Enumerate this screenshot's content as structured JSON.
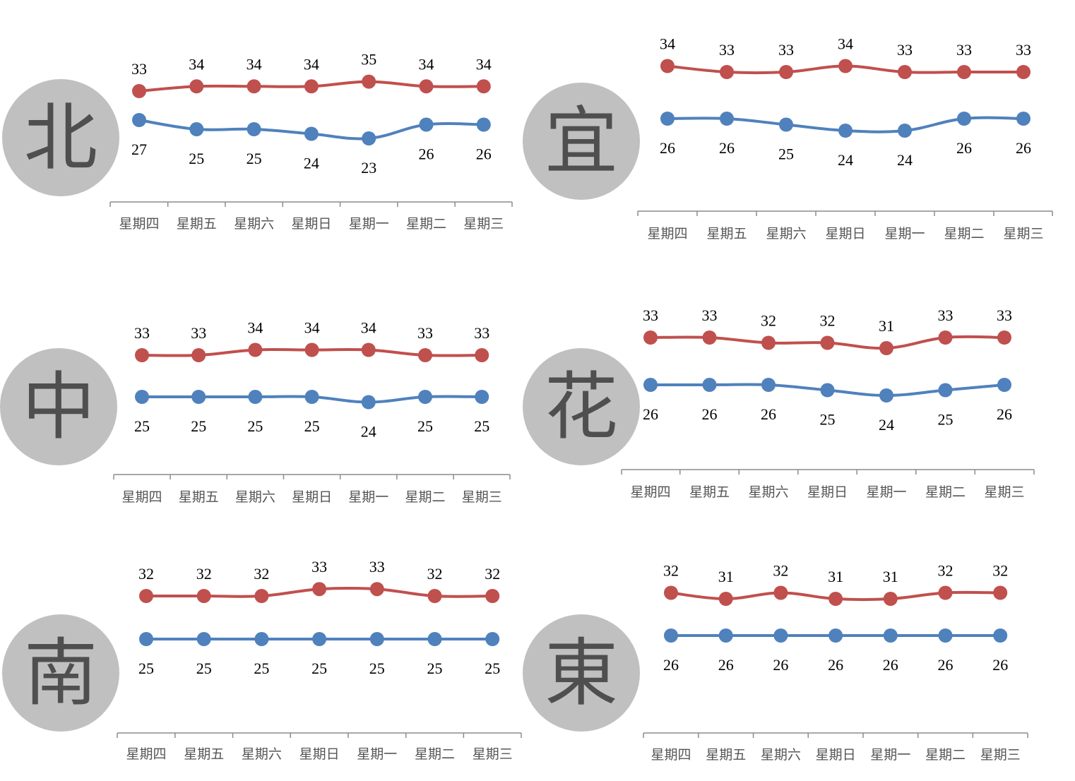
{
  "colors": {
    "high": "#c0504d",
    "low": "#4f81bd",
    "circle": "#c0c0c0",
    "axis": "#8c8c8c"
  },
  "chart_data": [
    {
      "type": "line",
      "city": "北",
      "categories": [
        "星期四",
        "星期五",
        "星期六",
        "星期日",
        "星期一",
        "星期二",
        "星期三"
      ],
      "series": [
        {
          "values": [
            33,
            34,
            34,
            34,
            35,
            34,
            34
          ]
        },
        {
          "values": [
            27,
            25,
            25,
            24,
            23,
            26,
            26
          ]
        }
      ],
      "ylim": [
        20,
        40
      ]
    },
    {
      "type": "line",
      "city": "宜",
      "categories": [
        "星期四",
        "星期五",
        "星期六",
        "星期日",
        "星期一",
        "星期二",
        "星期三"
      ],
      "series": [
        {
          "values": [
            34,
            33,
            33,
            34,
            33,
            33,
            33
          ]
        },
        {
          "values": [
            26,
            26,
            25,
            24,
            24,
            26,
            26
          ]
        }
      ],
      "ylim": [
        20,
        40
      ]
    },
    {
      "type": "line",
      "city": "中",
      "categories": [
        "星期四",
        "星期五",
        "星期六",
        "星期日",
        "星期一",
        "星期二",
        "星期三"
      ],
      "series": [
        {
          "values": [
            33,
            33,
            34,
            34,
            34,
            33,
            33
          ]
        },
        {
          "values": [
            25,
            25,
            25,
            25,
            24,
            25,
            25
          ]
        }
      ],
      "ylim": [
        20,
        40
      ]
    },
    {
      "type": "line",
      "city": "花",
      "categories": [
        "星期四",
        "星期五",
        "星期六",
        "星期日",
        "星期一",
        "星期二",
        "星期三"
      ],
      "series": [
        {
          "values": [
            33,
            33,
            32,
            32,
            31,
            33,
            33
          ]
        },
        {
          "values": [
            26,
            26,
            26,
            25,
            24,
            25,
            26
          ]
        }
      ],
      "ylim": [
        20,
        40
      ]
    },
    {
      "type": "line",
      "city": "南",
      "categories": [
        "星期四",
        "星期五",
        "星期六",
        "星期日",
        "星期一",
        "星期二",
        "星期三"
      ],
      "series": [
        {
          "values": [
            32,
            32,
            32,
            33,
            33,
            32,
            32
          ]
        },
        {
          "values": [
            25,
            25,
            25,
            25,
            25,
            25,
            25
          ]
        }
      ],
      "ylim": [
        20,
        40
      ]
    },
    {
      "type": "line",
      "city": "東",
      "categories": [
        "星期四",
        "星期五",
        "星期六",
        "星期日",
        "星期一",
        "星期二",
        "星期三"
      ],
      "series": [
        {
          "values": [
            32,
            31,
            32,
            31,
            31,
            32,
            32
          ]
        },
        {
          "values": [
            26,
            26,
            26,
            26,
            26,
            26,
            26
          ]
        }
      ],
      "ylim": [
        20,
        40
      ]
    }
  ]
}
